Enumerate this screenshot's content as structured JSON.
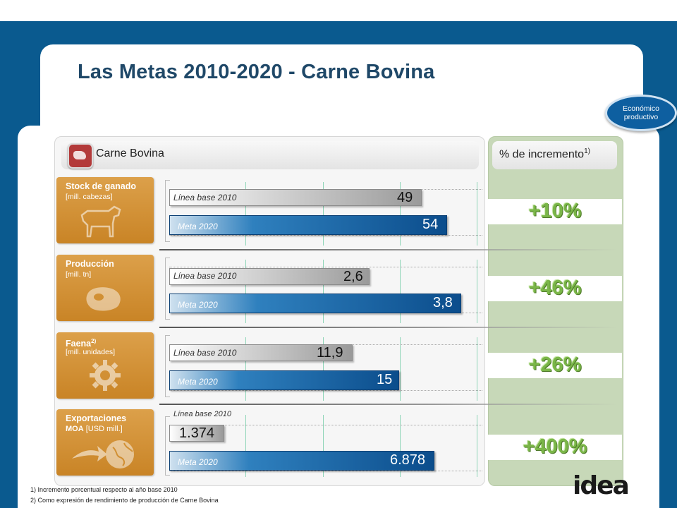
{
  "title": "Las Metas 2010-2020 - Carne Bovina",
  "badge": {
    "line1": "Económico",
    "line2": "productivo"
  },
  "left_header": "Carne Bovina",
  "right_header": {
    "text": "% de incremento",
    "sup": "1)"
  },
  "rows": [
    {
      "name": "Stock de ganado",
      "name_sup": "",
      "unit": "[mill. cabezas]",
      "icon": "cow-icon",
      "base_label": "Línea base 2010",
      "base_value": "49",
      "meta_label": "Meta 2020",
      "meta_value": "54",
      "increment": "+10%"
    },
    {
      "name": "Producción",
      "name_sup": "",
      "unit": "[mill. tn]",
      "icon": "meat-icon",
      "base_label": "Línea base 2010",
      "base_value": "2,6",
      "meta_label": "Meta 2020",
      "meta_value": "3,8",
      "increment": "+46%"
    },
    {
      "name": "Faena",
      "name_sup": "2)",
      "unit": "[mill. unidades]",
      "icon": "gear-icon",
      "base_label": "Línea base 2010",
      "base_value": "11,9",
      "meta_label": "Meta 2020",
      "meta_value": "15",
      "increment": "+26%"
    },
    {
      "name": "Exportaciones",
      "name2": "MOA",
      "unit": "[USD mill.]",
      "icon": "globe-export-icon",
      "base_label": "Línea base 2010",
      "base_value": "1.374",
      "meta_label": "Meta 2020",
      "meta_value": "6.878",
      "increment": "+400%"
    }
  ],
  "footnotes": [
    "1)  Incremento porcentual respecto al año base 2010",
    "2)  Como expresión de rendimiento de producción de Carne Bovina"
  ],
  "logo_text": "idea",
  "colors": {
    "frame": "#0a5a8f",
    "tile": "#d39236",
    "increment": "#7ab648",
    "meta_bar": "#0b4d8c"
  }
}
